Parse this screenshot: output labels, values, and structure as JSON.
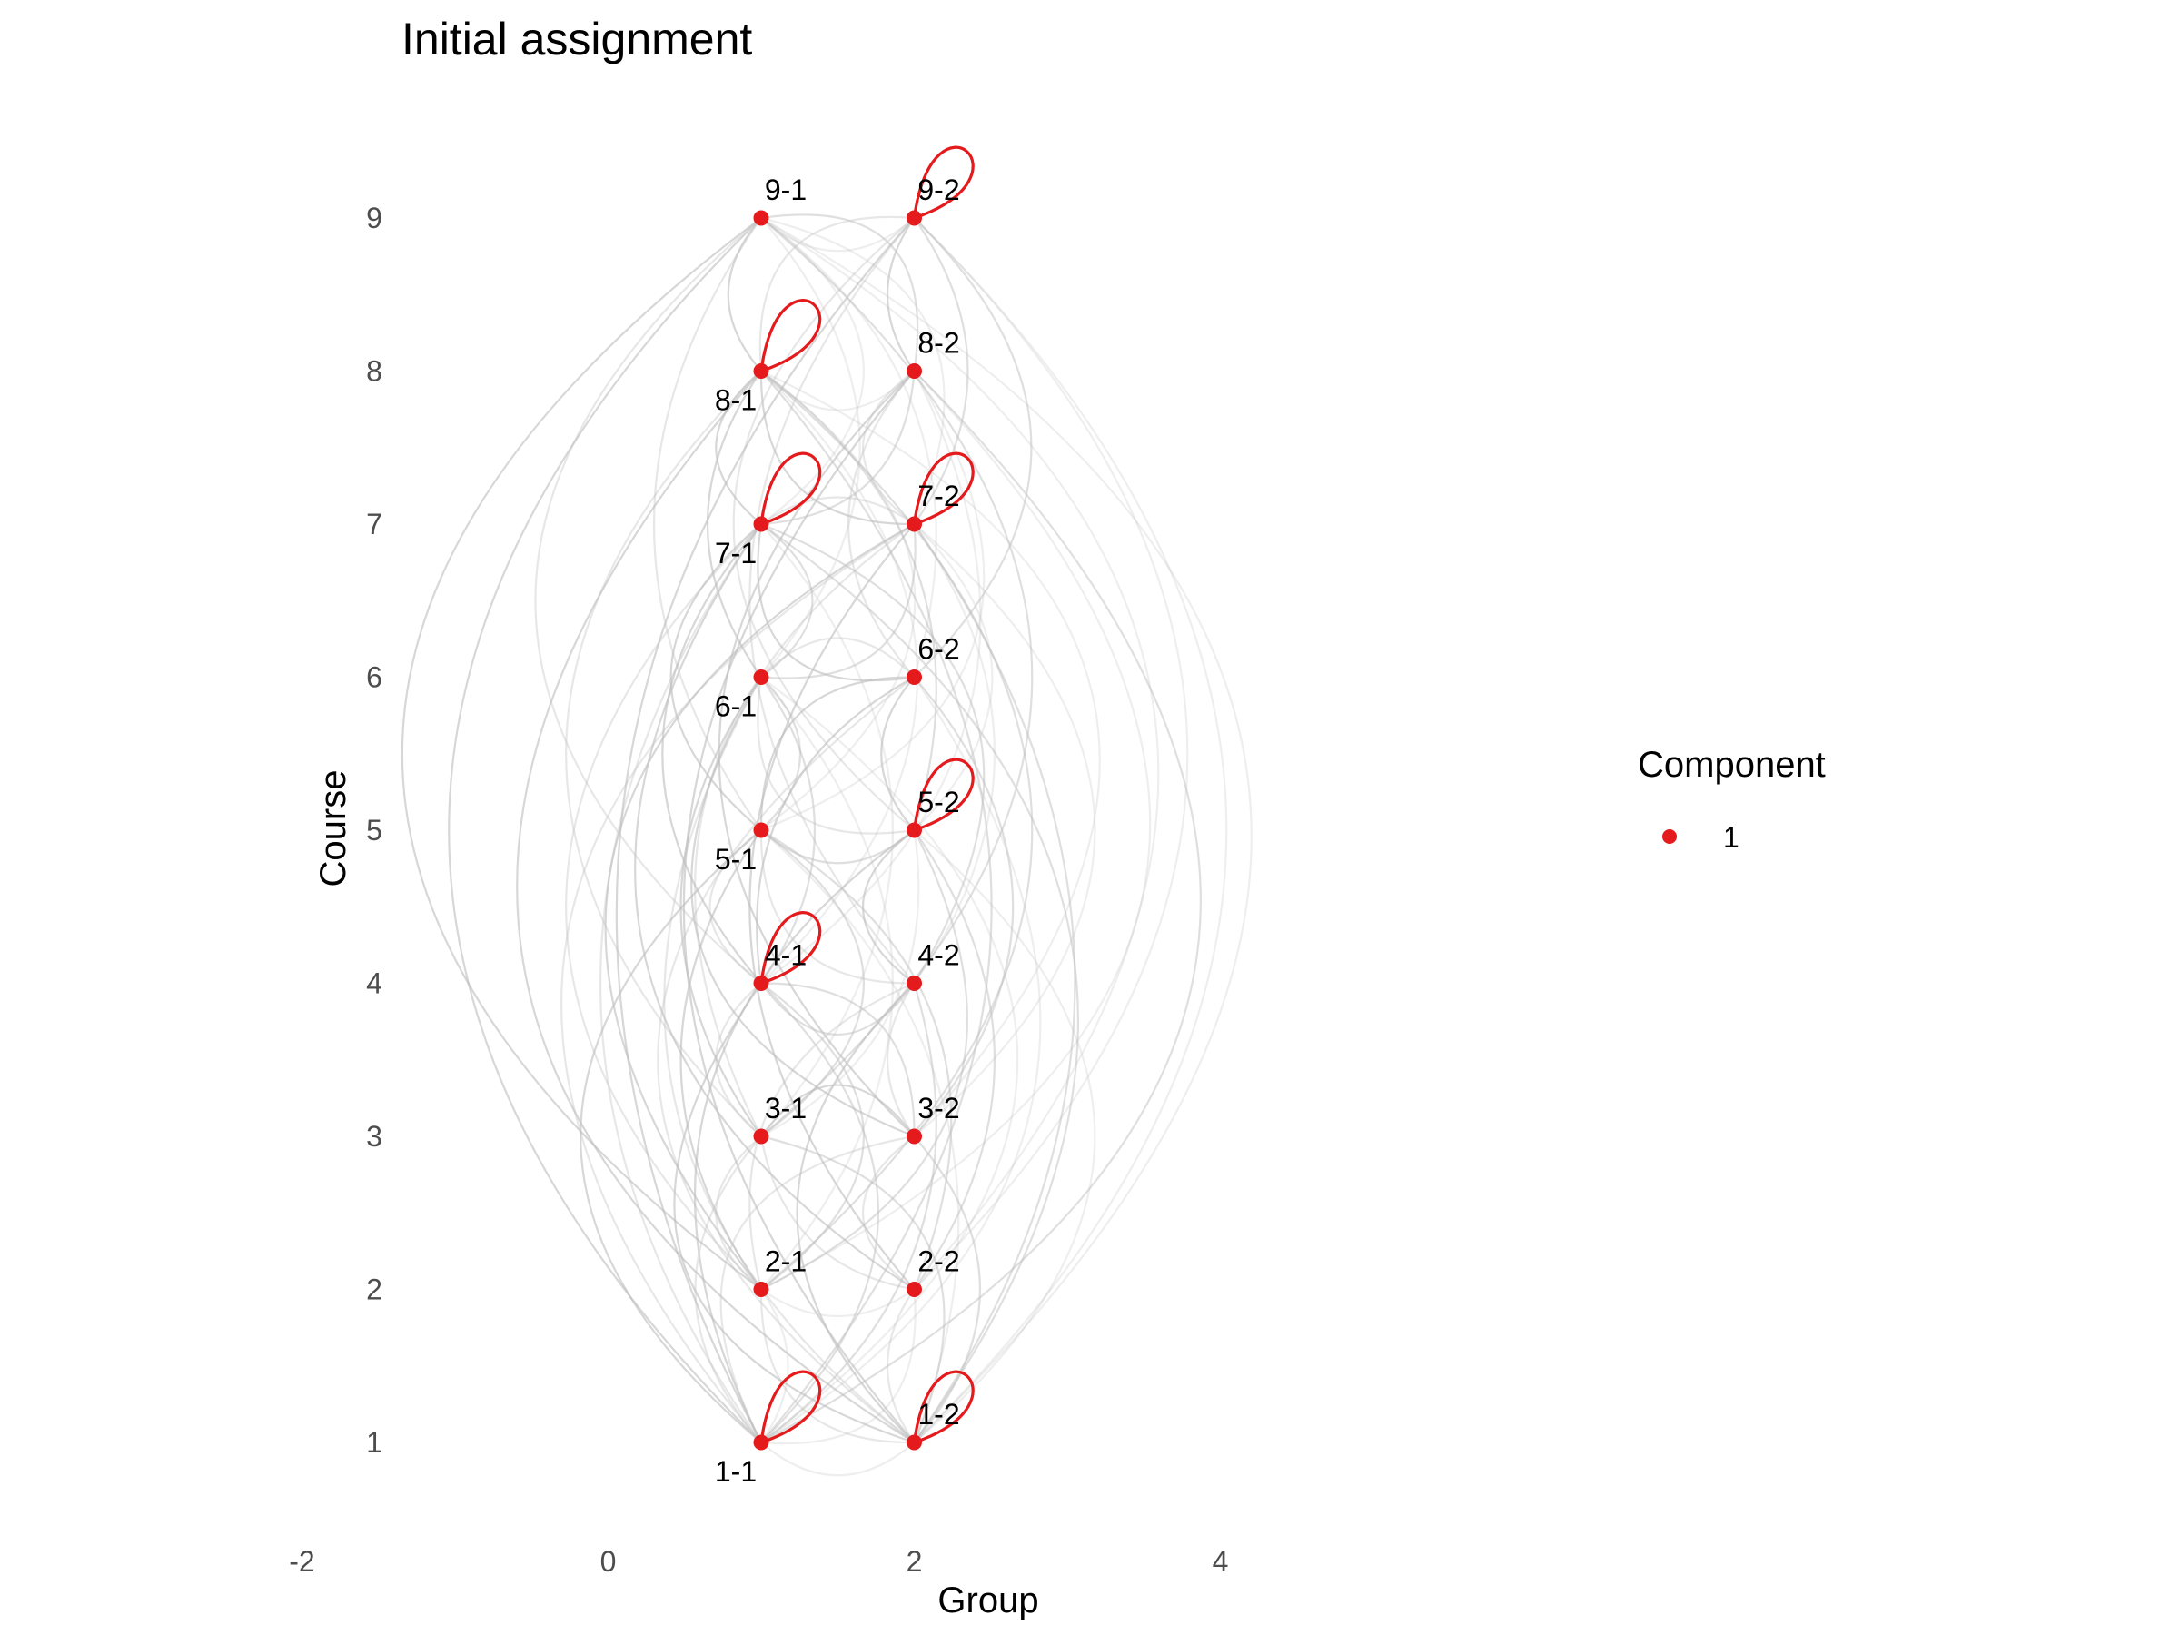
{
  "chart_data": {
    "type": "network",
    "title": "Initial assignment",
    "xlabel": "Group",
    "ylabel": "Course",
    "xlim": [
      -2,
      5
    ],
    "ylim": [
      0.6,
      9.5
    ],
    "x_ticks": [
      -2,
      0,
      2,
      4
    ],
    "y_ticks": [
      1,
      2,
      3,
      4,
      5,
      6,
      7,
      8,
      9
    ],
    "grid": false,
    "node_color": "#e41a1c",
    "edge_color": "#bdbdbd",
    "legend": {
      "title": "Component",
      "entries": [
        {
          "label": "1",
          "color": "#e41a1c"
        }
      ],
      "position": "right"
    },
    "nodes": [
      {
        "id": "1-1",
        "x": 1,
        "y": 1,
        "label_pos": "below",
        "self_loop": true
      },
      {
        "id": "1-2",
        "x": 2,
        "y": 1,
        "label_pos": "above",
        "self_loop": true
      },
      {
        "id": "2-1",
        "x": 1,
        "y": 2,
        "label_pos": "above",
        "self_loop": false
      },
      {
        "id": "2-2",
        "x": 2,
        "y": 2,
        "label_pos": "above",
        "self_loop": false
      },
      {
        "id": "3-1",
        "x": 1,
        "y": 3,
        "label_pos": "above",
        "self_loop": false
      },
      {
        "id": "3-2",
        "x": 2,
        "y": 3,
        "label_pos": "above",
        "self_loop": false
      },
      {
        "id": "4-1",
        "x": 1,
        "y": 4,
        "label_pos": "above",
        "self_loop": true
      },
      {
        "id": "4-2",
        "x": 2,
        "y": 4,
        "label_pos": "above",
        "self_loop": false
      },
      {
        "id": "5-1",
        "x": 1,
        "y": 5,
        "label_pos": "below",
        "self_loop": false
      },
      {
        "id": "5-2",
        "x": 2,
        "y": 5,
        "label_pos": "above",
        "self_loop": true
      },
      {
        "id": "6-1",
        "x": 1,
        "y": 6,
        "label_pos": "below",
        "self_loop": false
      },
      {
        "id": "6-2",
        "x": 2,
        "y": 6,
        "label_pos": "above",
        "self_loop": false
      },
      {
        "id": "7-1",
        "x": 1,
        "y": 7,
        "label_pos": "below",
        "self_loop": true
      },
      {
        "id": "7-2",
        "x": 2,
        "y": 7,
        "label_pos": "above",
        "self_loop": true
      },
      {
        "id": "8-1",
        "x": 1,
        "y": 8,
        "label_pos": "below",
        "self_loop": true
      },
      {
        "id": "8-2",
        "x": 2,
        "y": 8,
        "label_pos": "above",
        "self_loop": false
      },
      {
        "id": "9-1",
        "x": 1,
        "y": 9,
        "label_pos": "above",
        "self_loop": false
      },
      {
        "id": "9-2",
        "x": 2,
        "y": 9,
        "label_pos": "above",
        "self_loop": true
      }
    ],
    "edges": [
      [
        "1-1",
        "2-1"
      ],
      [
        "1-1",
        "3-1"
      ],
      [
        "1-1",
        "4-1"
      ],
      [
        "1-1",
        "5-1"
      ],
      [
        "1-1",
        "6-1"
      ],
      [
        "1-1",
        "7-1"
      ],
      [
        "1-1",
        "8-1"
      ],
      [
        "1-1",
        "9-1"
      ],
      [
        "1-1",
        "2-2"
      ],
      [
        "1-1",
        "3-2"
      ],
      [
        "1-1",
        "4-2"
      ],
      [
        "1-1",
        "5-2"
      ],
      [
        "1-1",
        "6-2"
      ],
      [
        "1-1",
        "7-2"
      ],
      [
        "1-1",
        "8-2"
      ],
      [
        "1-1",
        "9-2"
      ],
      [
        "1-1",
        "1-2"
      ],
      [
        "1-2",
        "2-1"
      ],
      [
        "1-2",
        "3-1"
      ],
      [
        "1-2",
        "4-1"
      ],
      [
        "1-2",
        "5-1"
      ],
      [
        "1-2",
        "6-1"
      ],
      [
        "1-2",
        "7-1"
      ],
      [
        "1-2",
        "8-1"
      ],
      [
        "1-2",
        "9-1"
      ],
      [
        "1-2",
        "2-2"
      ],
      [
        "1-2",
        "3-2"
      ],
      [
        "1-2",
        "4-2"
      ],
      [
        "1-2",
        "5-2"
      ],
      [
        "1-2",
        "6-2"
      ],
      [
        "1-2",
        "7-2"
      ],
      [
        "1-2",
        "8-2"
      ],
      [
        "1-2",
        "9-2"
      ],
      [
        "2-1",
        "3-1"
      ],
      [
        "2-1",
        "4-1"
      ],
      [
        "2-1",
        "5-1"
      ],
      [
        "2-1",
        "6-1"
      ],
      [
        "2-1",
        "7-1"
      ],
      [
        "2-1",
        "8-1"
      ],
      [
        "2-1",
        "9-1"
      ],
      [
        "2-1",
        "2-2"
      ],
      [
        "2-1",
        "4-2"
      ],
      [
        "2-1",
        "5-2"
      ],
      [
        "2-1",
        "7-2"
      ],
      [
        "2-1",
        "8-2"
      ],
      [
        "2-2",
        "3-1"
      ],
      [
        "2-2",
        "5-1"
      ],
      [
        "2-2",
        "7-1"
      ],
      [
        "2-2",
        "9-1"
      ],
      [
        "2-2",
        "3-2"
      ],
      [
        "2-2",
        "5-2"
      ],
      [
        "2-2",
        "7-2"
      ],
      [
        "2-2",
        "9-2"
      ],
      [
        "3-1",
        "4-1"
      ],
      [
        "3-1",
        "5-1"
      ],
      [
        "3-1",
        "6-1"
      ],
      [
        "3-1",
        "7-1"
      ],
      [
        "3-1",
        "8-1"
      ],
      [
        "3-1",
        "9-1"
      ],
      [
        "3-1",
        "3-2"
      ],
      [
        "3-1",
        "5-2"
      ],
      [
        "3-1",
        "7-2"
      ],
      [
        "3-2",
        "4-1"
      ],
      [
        "3-2",
        "6-1"
      ],
      [
        "3-2",
        "8-1"
      ],
      [
        "3-2",
        "4-2"
      ],
      [
        "3-2",
        "6-2"
      ],
      [
        "3-2",
        "8-2"
      ],
      [
        "3-2",
        "7-2"
      ],
      [
        "4-1",
        "5-1"
      ],
      [
        "4-1",
        "6-1"
      ],
      [
        "4-1",
        "7-1"
      ],
      [
        "4-1",
        "8-1"
      ],
      [
        "4-1",
        "9-1"
      ],
      [
        "4-1",
        "4-2"
      ],
      [
        "4-1",
        "6-2"
      ],
      [
        "4-1",
        "8-2"
      ],
      [
        "4-2",
        "5-1"
      ],
      [
        "4-2",
        "7-1"
      ],
      [
        "4-2",
        "5-2"
      ],
      [
        "4-2",
        "7-2"
      ],
      [
        "4-2",
        "9-2"
      ],
      [
        "5-1",
        "6-1"
      ],
      [
        "5-1",
        "7-1"
      ],
      [
        "5-1",
        "8-1"
      ],
      [
        "5-1",
        "9-1"
      ],
      [
        "5-1",
        "5-2"
      ],
      [
        "5-1",
        "6-2"
      ],
      [
        "5-1",
        "8-2"
      ],
      [
        "5-2",
        "6-1"
      ],
      [
        "5-2",
        "8-1"
      ],
      [
        "5-2",
        "6-2"
      ],
      [
        "5-2",
        "7-2"
      ],
      [
        "5-2",
        "9-2"
      ],
      [
        "6-1",
        "7-1"
      ],
      [
        "6-1",
        "8-1"
      ],
      [
        "6-1",
        "9-1"
      ],
      [
        "6-1",
        "6-2"
      ],
      [
        "6-1",
        "7-2"
      ],
      [
        "6-2",
        "7-1"
      ],
      [
        "6-2",
        "9-1"
      ],
      [
        "6-2",
        "8-2"
      ],
      [
        "6-2",
        "9-2"
      ],
      [
        "7-1",
        "8-1"
      ],
      [
        "7-1",
        "9-1"
      ],
      [
        "7-1",
        "7-2"
      ],
      [
        "7-1",
        "8-2"
      ],
      [
        "7-2",
        "8-1"
      ],
      [
        "7-2",
        "9-1"
      ],
      [
        "7-2",
        "8-2"
      ],
      [
        "7-2",
        "9-2"
      ],
      [
        "8-1",
        "9-1"
      ],
      [
        "8-1",
        "8-2"
      ],
      [
        "8-1",
        "9-2"
      ],
      [
        "8-2",
        "9-1"
      ],
      [
        "8-2",
        "9-2"
      ],
      [
        "9-1",
        "9-2"
      ]
    ]
  }
}
